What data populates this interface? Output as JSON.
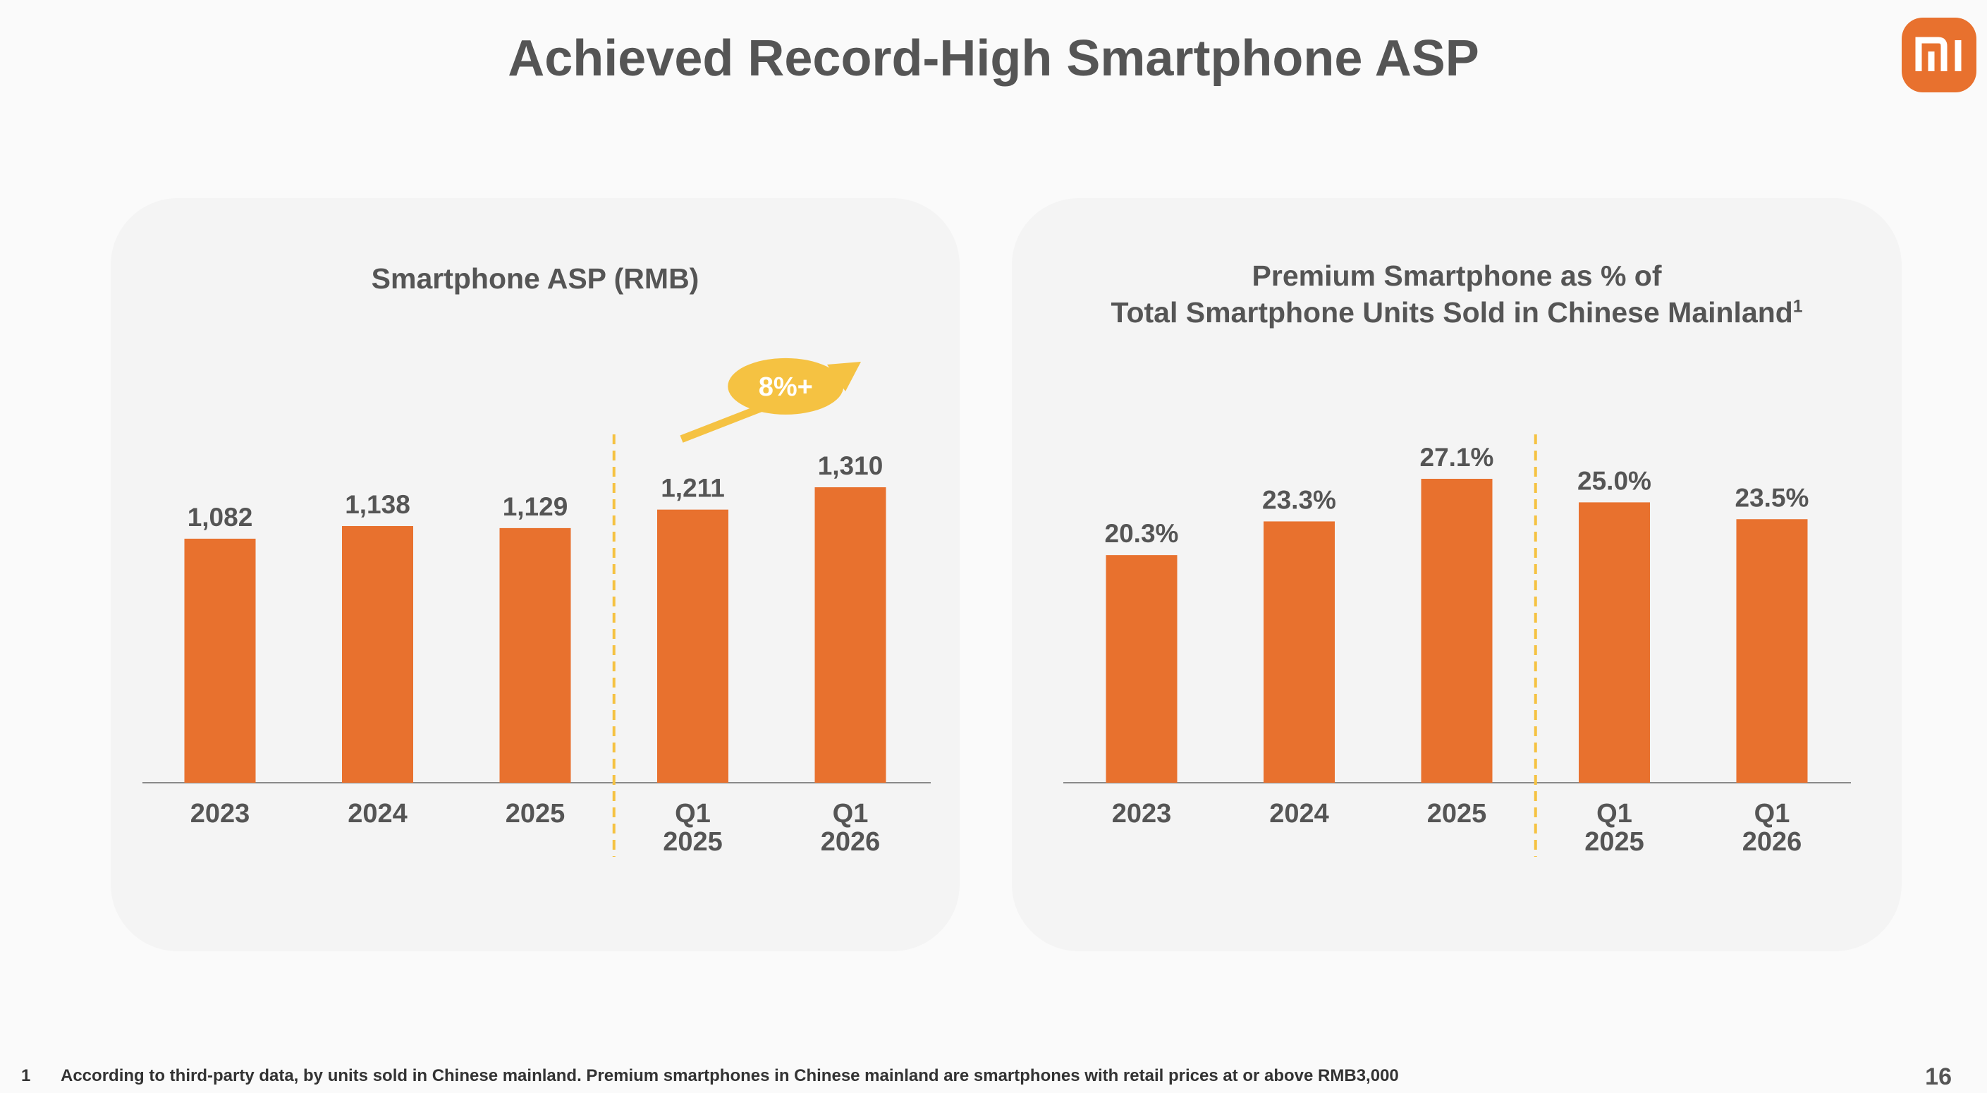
{
  "slide": {
    "title": "Achieved Record-High Smartphone ASP",
    "page_number": "16",
    "logo_text": "mi",
    "accent_color": "#e8712e",
    "highlight_color": "#f5c242"
  },
  "footnote": {
    "marker": "1",
    "text": "According to third-party data, by units sold in Chinese mainland. Premium smartphones in Chinese mainland are smartphones with retail prices at or above RMB3,000"
  },
  "chart_data": [
    {
      "type": "bar",
      "title": "Smartphone ASP (RMB)",
      "categories": [
        [
          "2023"
        ],
        [
          "2024"
        ],
        [
          "2025"
        ],
        [
          "Q1",
          "2025"
        ],
        [
          "Q1",
          "2026"
        ]
      ],
      "values": [
        1082,
        1138,
        1129,
        1211,
        1310
      ],
      "value_labels": [
        "1,082",
        "1,138",
        "1,129",
        "1,211",
        "1,310"
      ],
      "separator_after_index": 2,
      "annotation": {
        "text": "8%+",
        "from_index": 3,
        "to_index": 4
      },
      "grid": false,
      "legend": "none"
    },
    {
      "type": "bar",
      "title_lines": [
        "Premium Smartphone as % of",
        "Total Smartphone Units Sold in Chinese Mainland"
      ],
      "title_footnote_marker": "1",
      "categories": [
        [
          "2023"
        ],
        [
          "2024"
        ],
        [
          "2025"
        ],
        [
          "Q1",
          "2025"
        ],
        [
          "Q1",
          "2026"
        ]
      ],
      "values": [
        20.3,
        23.3,
        27.1,
        25.0,
        23.5
      ],
      "value_labels": [
        "20.3%",
        "23.3%",
        "27.1%",
        "25.0%",
        "23.5%"
      ],
      "separator_after_index": 2,
      "grid": false,
      "legend": "none"
    }
  ]
}
